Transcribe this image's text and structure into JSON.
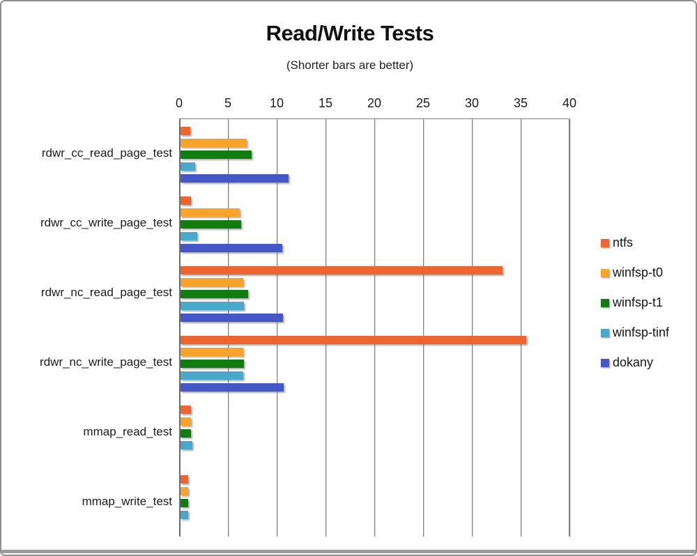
{
  "chart_data": {
    "type": "bar",
    "orientation": "horizontal",
    "title": "Read/Write Tests",
    "subtitle": "(Shorter bars are better)",
    "value_axis": {
      "position": "top",
      "min": 0,
      "max": 40,
      "tick_step": 5,
      "tick_labels": [
        "0",
        "5",
        "10",
        "15",
        "20",
        "25",
        "30",
        "35",
        "40"
      ]
    },
    "categories": [
      "rdwr_cc_read_page_test",
      "rdwr_cc_write_page_test",
      "rdwr_nc_read_page_test",
      "rdwr_nc_write_page_test",
      "mmap_read_test",
      "mmap_write_test"
    ],
    "series": [
      {
        "name": "ntfs",
        "color": "#ED6531",
        "values": [
          1.0,
          1.1,
          33.0,
          35.4,
          1.1,
          0.8
        ]
      },
      {
        "name": "winfsp-t0",
        "color": "#F8A42C",
        "values": [
          6.8,
          6.1,
          6.4,
          6.4,
          1.1,
          0.8
        ]
      },
      {
        "name": "winfsp-t1",
        "color": "#117D11",
        "values": [
          7.3,
          6.2,
          6.9,
          6.5,
          1.1,
          0.8
        ]
      },
      {
        "name": "winfsp-tinf",
        "color": "#4AA9CB",
        "values": [
          1.5,
          1.7,
          6.5,
          6.4,
          1.2,
          0.8
        ]
      },
      {
        "name": "dokany",
        "color": "#4557C6",
        "values": [
          11.1,
          10.4,
          10.5,
          10.6,
          0,
          0
        ]
      }
    ],
    "legend": {
      "position": "right",
      "items": [
        "ntfs",
        "winfsp-t0",
        "winfsp-t1",
        "winfsp-tinf",
        "dokany"
      ]
    },
    "grid": true,
    "gridline_color": "#7d7d7d",
    "text_color": "#1c1c1c",
    "plot_background": "#ffffff"
  }
}
